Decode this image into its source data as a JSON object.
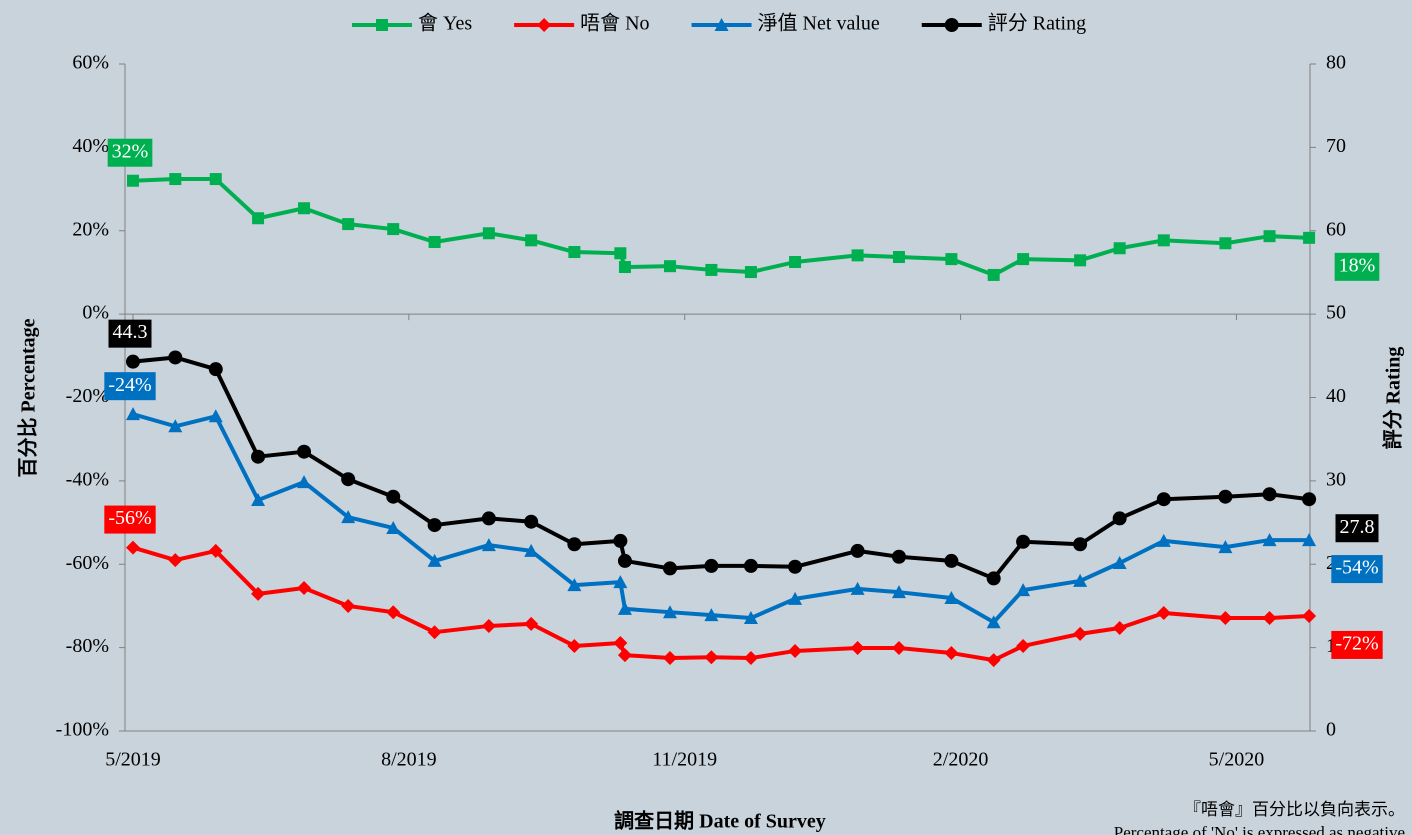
{
  "chart_data": {
    "type": "line",
    "xlabel": "調查日期 Date of Survey",
    "ylabel": "百分比 Percentage",
    "y2label": "評分 Rating",
    "note": [
      "『唔會』百分比以負向表示。",
      "Percentage of 'No' is expressed as negative"
    ],
    "x": [
      0,
      0.46,
      0.9,
      1.36,
      1.86,
      2.34,
      2.83,
      3.28,
      3.87,
      4.33,
      4.8,
      5.3,
      5.35,
      5.84,
      6.29,
      6.72,
      7.2,
      7.88,
      8.33,
      8.9,
      9.36,
      9.68,
      10.3,
      10.73,
      11.21,
      11.88,
      12.36,
      12.79
    ],
    "xlim": [
      0,
      12.8
    ],
    "xticks": [
      {
        "value": 0,
        "label": "5/2019"
      },
      {
        "value": 3,
        "label": "8/2019"
      },
      {
        "value": 6,
        "label": "11/2019"
      },
      {
        "value": 9,
        "label": "2/2020"
      },
      {
        "value": 12,
        "label": "5/2020"
      }
    ],
    "ylim": [
      -100,
      60
    ],
    "yticks": [
      {
        "value": -100,
        "label": "-100%"
      },
      {
        "value": -80,
        "label": "-80%"
      },
      {
        "value": -60,
        "label": "-60%"
      },
      {
        "value": -40,
        "label": "-40%"
      },
      {
        "value": -20,
        "label": "-20%"
      },
      {
        "value": 0,
        "label": "0%"
      },
      {
        "value": 20,
        "label": "20%"
      },
      {
        "value": 40,
        "label": "40%"
      },
      {
        "value": 60,
        "label": "60%"
      }
    ],
    "y2lim": [
      0,
      80
    ],
    "y2ticks": [
      0,
      10,
      20,
      30,
      40,
      50,
      60,
      70,
      80
    ],
    "legend": "top",
    "series": [
      {
        "name": "會 Yes",
        "color": "#00b050",
        "marker": "square",
        "values": [
          32,
          32.4,
          32.4,
          23,
          25.4,
          21.6,
          20.4,
          17.3,
          19.4,
          17.7,
          14.9,
          14.6,
          11.3,
          11.5,
          10.6,
          10.1,
          12.5,
          14.1,
          13.7,
          13.2,
          9.4,
          13.2,
          12.9,
          15.8,
          17.7,
          17,
          18.7,
          18.3
        ],
        "value_labels": [
          "32%",
          null,
          null,
          null,
          null,
          null,
          null,
          null,
          null,
          null,
          null,
          null,
          null,
          null,
          null,
          null,
          null,
          null,
          null,
          null,
          null,
          null,
          null,
          null,
          null,
          null,
          null,
          "18%"
        ]
      },
      {
        "name": "唔會 No",
        "color": "#ff0000",
        "marker": "diamond",
        "values": [
          -56,
          -59,
          -56.8,
          -67.1,
          -65.7,
          -70,
          -71.5,
          -76.3,
          -74.8,
          -74.3,
          -79.6,
          -78.9,
          -81.8,
          -82.5,
          -82.3,
          -82.5,
          -80.8,
          -80.1,
          -80.1,
          -81.3,
          -83,
          -79.6,
          -76.7,
          -75.3,
          -71.7,
          -72.9,
          -72.9,
          -72.4
        ],
        "value_labels": [
          "-56%",
          null,
          null,
          null,
          null,
          null,
          null,
          null,
          null,
          null,
          null,
          null,
          null,
          null,
          null,
          null,
          null,
          null,
          null,
          null,
          null,
          null,
          null,
          null,
          null,
          null,
          null,
          "-72%"
        ]
      },
      {
        "name": "淨值 Net value",
        "color": "#0070c0",
        "marker": "triangle",
        "values": [
          -24,
          -26.9,
          -24.5,
          -44.6,
          -40.3,
          -48.7,
          -51.3,
          -59.2,
          -55.4,
          -56.8,
          -65,
          -64.3,
          -70.7,
          -71.5,
          -72.2,
          -72.9,
          -68.3,
          -65.9,
          -66.7,
          -68.1,
          -73.9,
          -66.2,
          -64,
          -59.7,
          -54.4,
          -55.9,
          -54.2,
          -54.2
        ],
        "value_labels": [
          "-24%",
          null,
          null,
          null,
          null,
          null,
          null,
          null,
          null,
          null,
          null,
          null,
          null,
          null,
          null,
          null,
          null,
          null,
          null,
          null,
          null,
          null,
          null,
          null,
          null,
          null,
          null,
          "-54%"
        ]
      },
      {
        "name": "評分 Rating",
        "color": "#000000",
        "marker": "circle",
        "axis": "y2",
        "values": [
          44.3,
          44.8,
          43.4,
          32.9,
          33.5,
          30.2,
          28.1,
          24.7,
          25.5,
          25.1,
          22.4,
          22.8,
          20.4,
          19.5,
          19.8,
          19.8,
          19.7,
          21.6,
          20.9,
          20.4,
          18.3,
          22.7,
          22.4,
          25.5,
          27.8,
          28.1,
          28.4,
          27.8
        ],
        "value_labels": [
          "44.3",
          null,
          null,
          null,
          null,
          null,
          null,
          null,
          null,
          null,
          null,
          null,
          null,
          null,
          null,
          null,
          null,
          null,
          null,
          null,
          null,
          null,
          null,
          null,
          null,
          null,
          null,
          "27.8"
        ]
      }
    ]
  }
}
